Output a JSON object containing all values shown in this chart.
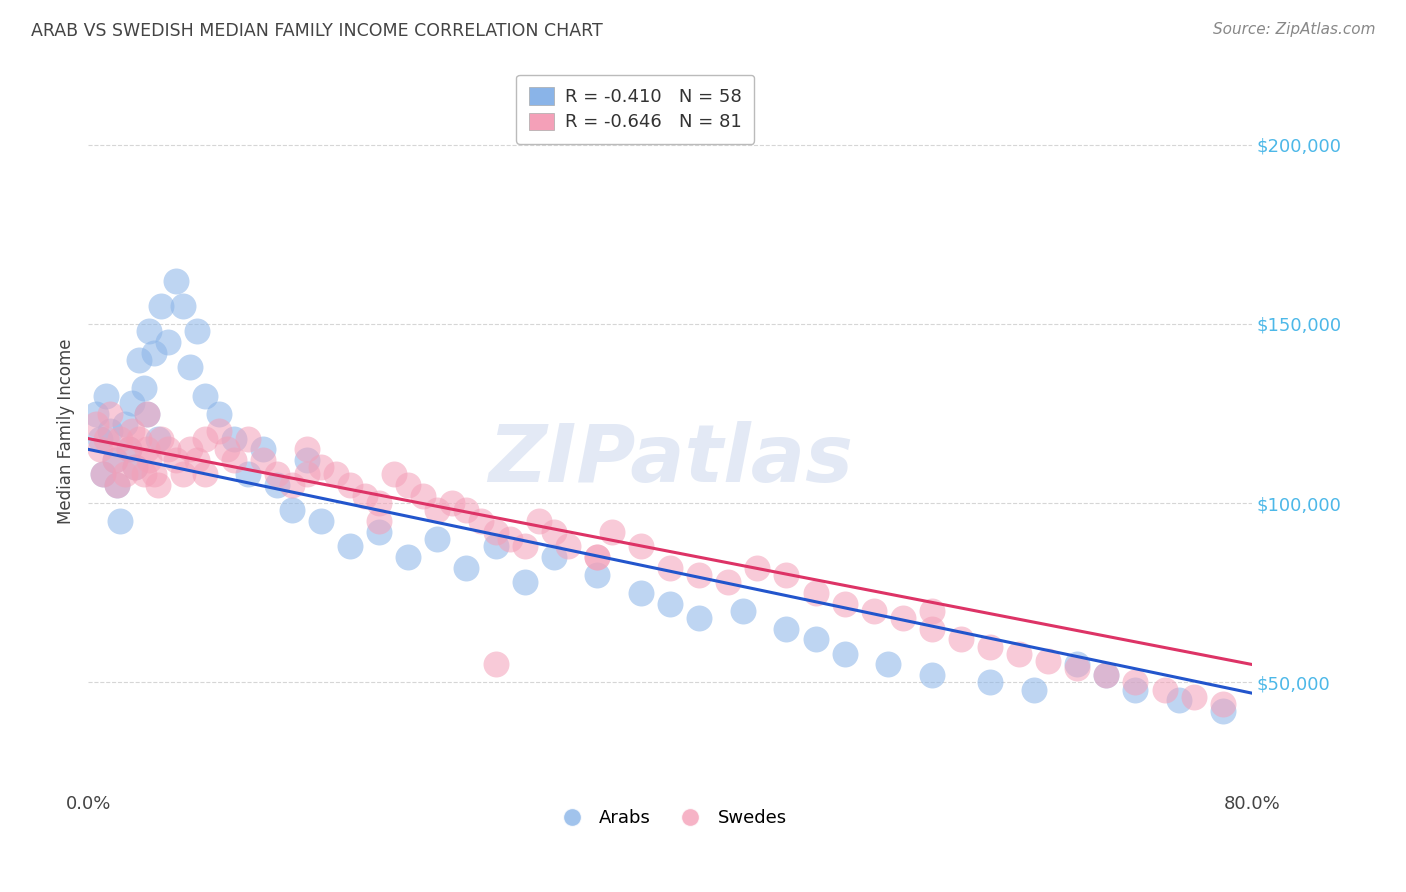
{
  "title": "ARAB VS SWEDISH MEDIAN FAMILY INCOME CORRELATION CHART",
  "source": "Source: ZipAtlas.com",
  "ylabel": "Median Family Income",
  "ytick_labels": [
    "$50,000",
    "$100,000",
    "$150,000",
    "$200,000"
  ],
  "ytick_values": [
    50000,
    100000,
    150000,
    200000
  ],
  "ylim": [
    20000,
    220000
  ],
  "xlim": [
    0.0,
    0.8
  ],
  "arab_color": "#8ab4e8",
  "swede_color": "#f4a0b8",
  "arab_line_color": "#2255cc",
  "swede_line_color": "#dd3366",
  "background_color": "#ffffff",
  "grid_color": "#cccccc",
  "title_color": "#444444",
  "source_color": "#888888",
  "arab_R": -0.41,
  "arab_N": 58,
  "swede_R": -0.646,
  "swede_N": 81,
  "arab_line_x0": 0.0,
  "arab_line_y0": 115000,
  "arab_line_x1": 0.8,
  "arab_line_y1": 47000,
  "swede_line_x0": 0.0,
  "swede_line_y0": 118000,
  "swede_line_x1": 0.8,
  "swede_line_y1": 55000,
  "arab_data_x": [
    0.005,
    0.008,
    0.01,
    0.012,
    0.015,
    0.018,
    0.02,
    0.022,
    0.025,
    0.028,
    0.03,
    0.032,
    0.035,
    0.038,
    0.04,
    0.042,
    0.045,
    0.048,
    0.05,
    0.055,
    0.06,
    0.065,
    0.07,
    0.075,
    0.08,
    0.09,
    0.1,
    0.11,
    0.12,
    0.13,
    0.14,
    0.15,
    0.16,
    0.18,
    0.2,
    0.22,
    0.24,
    0.26,
    0.28,
    0.3,
    0.32,
    0.35,
    0.38,
    0.4,
    0.42,
    0.45,
    0.48,
    0.5,
    0.52,
    0.55,
    0.58,
    0.62,
    0.65,
    0.68,
    0.7,
    0.72,
    0.75,
    0.78
  ],
  "arab_data_y": [
    125000,
    118000,
    108000,
    130000,
    120000,
    112000,
    105000,
    95000,
    122000,
    115000,
    128000,
    110000,
    140000,
    132000,
    125000,
    148000,
    142000,
    118000,
    155000,
    145000,
    162000,
    155000,
    138000,
    148000,
    130000,
    125000,
    118000,
    108000,
    115000,
    105000,
    98000,
    112000,
    95000,
    88000,
    92000,
    85000,
    90000,
    82000,
    88000,
    78000,
    85000,
    80000,
    75000,
    72000,
    68000,
    70000,
    65000,
    62000,
    58000,
    55000,
    52000,
    50000,
    48000,
    55000,
    52000,
    48000,
    45000,
    42000
  ],
  "swede_data_x": [
    0.005,
    0.008,
    0.01,
    0.012,
    0.015,
    0.018,
    0.02,
    0.022,
    0.025,
    0.028,
    0.03,
    0.032,
    0.035,
    0.038,
    0.04,
    0.042,
    0.045,
    0.048,
    0.05,
    0.055,
    0.06,
    0.065,
    0.07,
    0.075,
    0.08,
    0.09,
    0.095,
    0.1,
    0.11,
    0.12,
    0.13,
    0.14,
    0.15,
    0.16,
    0.17,
    0.18,
    0.19,
    0.2,
    0.21,
    0.22,
    0.23,
    0.24,
    0.25,
    0.26,
    0.27,
    0.28,
    0.29,
    0.3,
    0.31,
    0.32,
    0.33,
    0.35,
    0.36,
    0.38,
    0.4,
    0.42,
    0.44,
    0.46,
    0.48,
    0.5,
    0.52,
    0.54,
    0.56,
    0.58,
    0.6,
    0.62,
    0.64,
    0.66,
    0.68,
    0.7,
    0.72,
    0.74,
    0.76,
    0.78,
    0.58,
    0.35,
    0.28,
    0.2,
    0.15,
    0.08,
    0.04
  ],
  "swede_data_y": [
    122000,
    115000,
    108000,
    118000,
    125000,
    112000,
    105000,
    118000,
    108000,
    115000,
    120000,
    110000,
    118000,
    108000,
    115000,
    112000,
    108000,
    105000,
    118000,
    115000,
    112000,
    108000,
    115000,
    112000,
    108000,
    120000,
    115000,
    112000,
    118000,
    112000,
    108000,
    105000,
    115000,
    110000,
    108000,
    105000,
    102000,
    100000,
    108000,
    105000,
    102000,
    98000,
    100000,
    98000,
    95000,
    92000,
    90000,
    88000,
    95000,
    92000,
    88000,
    85000,
    92000,
    88000,
    82000,
    80000,
    78000,
    82000,
    80000,
    75000,
    72000,
    70000,
    68000,
    65000,
    62000,
    60000,
    58000,
    56000,
    54000,
    52000,
    50000,
    48000,
    46000,
    44000,
    70000,
    85000,
    55000,
    95000,
    108000,
    118000,
    125000
  ]
}
